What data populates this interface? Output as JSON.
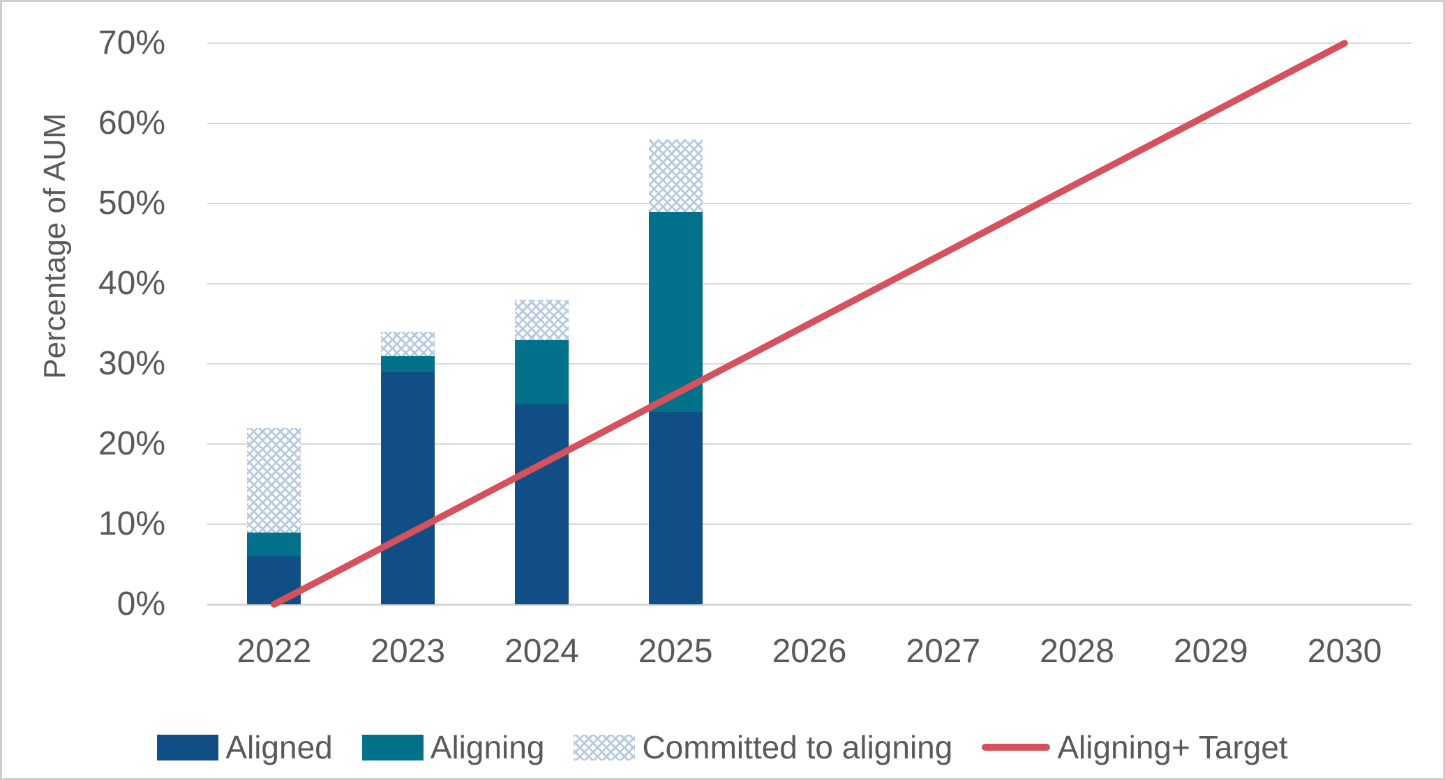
{
  "chart_data": {
    "type": "bar",
    "subtype": "stacked-bar-with-target-line",
    "title": "",
    "ylabel": "Percentage of AUM",
    "xlabel": "",
    "categories": [
      "2022",
      "2023",
      "2024",
      "2025",
      "2026",
      "2027",
      "2028",
      "2029",
      "2030"
    ],
    "y_ticks": [
      0,
      10,
      20,
      30,
      40,
      50,
      60,
      70
    ],
    "y_tick_labels": [
      "0%",
      "10%",
      "20%",
      "30%",
      "40%",
      "50%",
      "60%",
      "70%"
    ],
    "ylim": [
      0,
      70
    ],
    "grid": true,
    "legend_position": "bottom",
    "bar_series": [
      {
        "name": "Aligned",
        "style": "solid",
        "color": "#114e86",
        "values": [
          6,
          29,
          25,
          24,
          null,
          null,
          null,
          null,
          null
        ]
      },
      {
        "name": "Aligning",
        "style": "solid",
        "color": "#04718a",
        "values": [
          3,
          2,
          8,
          25,
          null,
          null,
          null,
          null,
          null
        ]
      },
      {
        "name": "Committed to aligning",
        "style": "checker-pattern",
        "color": "#b8cadf",
        "values": [
          13,
          3,
          5,
          9,
          null,
          null,
          null,
          null,
          null
        ]
      }
    ],
    "stacked_totals": [
      22,
      34,
      38,
      58,
      null,
      null,
      null,
      null,
      null
    ],
    "line_series": [
      {
        "name": "Aligning+ Target",
        "color": "#d5515b",
        "points": [
          {
            "category": "2022",
            "value": 0
          },
          {
            "category": "2030",
            "value": 70
          }
        ]
      }
    ],
    "colors": {
      "axis_text": "#595959",
      "gridline": "#d9d9d9",
      "aligned": "#114e86",
      "aligning": "#04718a",
      "committed_pattern": "#b8cadf",
      "target_line": "#d5515b"
    }
  }
}
